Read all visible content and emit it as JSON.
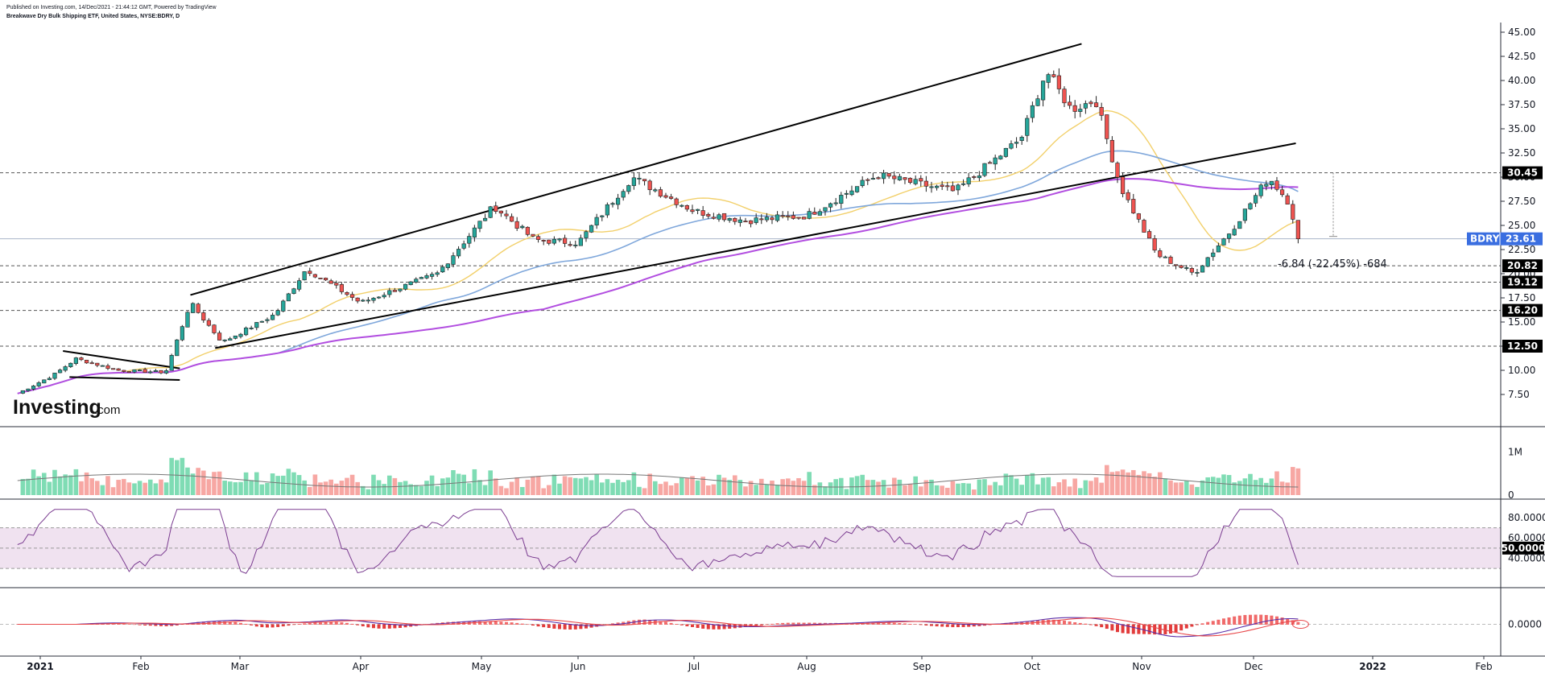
{
  "header": {
    "published": "Published on Investing.com, 14/Dec/2021 - 21:44:12 GMT, Powered by TradingView",
    "title": "Breakwave Dry Bulk Shipping ETF, United States, NYSE:BDRY, D"
  },
  "logo": {
    "main": "Investing",
    "suffix": ".com"
  },
  "colors": {
    "up": "#26a69a",
    "down": "#ef5350",
    "vol_up": "#7fdcb4",
    "vol_down": "#f7a7a3",
    "ma_fast": "#f2d06b",
    "ma_mid": "#7fa7db",
    "ma_slow": "#b24ee0",
    "rsi": "#7b3d91",
    "macd": "#5b2fa8",
    "signal": "#e8484a",
    "tag_bg": "#000000",
    "price_tag_bg": "#3a6ee0"
  },
  "chart_data": {
    "type": "candlestick",
    "symbol": "BDRY",
    "x_labels": [
      "2021",
      "Feb",
      "Mar",
      "Apr",
      "May",
      "Jun",
      "Jul",
      "Aug",
      "Sep",
      "Oct",
      "Nov",
      "Dec",
      "2022",
      "Feb"
    ],
    "x_label_bold": [
      "2021",
      "2022"
    ],
    "price_axis": {
      "ticks": [
        "45.00",
        "42.50",
        "40.00",
        "37.50",
        "35.00",
        "32.50",
        "30.00",
        "27.50",
        "25.00",
        "22.50",
        "20.00",
        "17.50",
        "15.00",
        "12.50",
        "10.00",
        "7.50"
      ],
      "ylim": [
        5.0,
        46.0
      ]
    },
    "levels": [
      "30.45",
      "20.82",
      "19.12",
      "16.20",
      "12.50"
    ],
    "last_price": {
      "label": "BDRY",
      "value": "23.61"
    },
    "change": "-6.84 (-22.45%) -684",
    "volume_axis": {
      "ticks": [
        "1M",
        "0"
      ],
      "max": 1500000
    },
    "rsi_axis": {
      "ticks": [
        "80.0000",
        "60.0000",
        "40.0000"
      ],
      "current": "50.0000",
      "band": [
        30,
        70
      ],
      "ylim": [
        15,
        95
      ]
    },
    "macd_axis": {
      "ticks": [
        "0.0000"
      ]
    },
    "trendlines": [
      {
        "from": [
          "2021-01-08",
          12.0
        ],
        "to": [
          "2021-02-12",
          10.2
        ]
      },
      {
        "from": [
          "2021-01-10",
          9.3
        ],
        "to": [
          "2021-02-12",
          9.0
        ]
      },
      {
        "from": [
          "2021-02-15",
          17.8
        ],
        "to": [
          "2021-10-15",
          43.8
        ]
      },
      {
        "from": [
          "2021-02-22",
          12.3
        ],
        "to": [
          "2021-12-12",
          33.5
        ]
      }
    ],
    "price_months": [
      [
        "2020-12-25",
        7.6
      ],
      [
        "2021-01-05",
        9.5
      ],
      [
        "2021-01-12",
        11.2
      ],
      [
        "2021-01-25",
        10.0
      ],
      [
        "2021-02-08",
        9.8
      ],
      [
        "2021-02-15",
        17.0
      ],
      [
        "2021-02-24",
        12.9
      ],
      [
        "2021-03-10",
        15.8
      ],
      [
        "2021-03-18",
        20.5
      ],
      [
        "2021-04-01",
        17.0
      ],
      [
        "2021-04-20",
        20.0
      ],
      [
        "2021-05-05",
        27.0
      ],
      [
        "2021-05-18",
        23.5
      ],
      [
        "2021-06-01",
        23.2
      ],
      [
        "2021-06-15",
        30.0
      ],
      [
        "2021-07-01",
        26.5
      ],
      [
        "2021-07-15",
        25.5
      ],
      [
        "2021-08-01",
        26.0
      ],
      [
        "2021-08-20",
        30.2
      ],
      [
        "2021-09-10",
        28.5
      ],
      [
        "2021-09-28",
        34.0
      ],
      [
        "2021-10-05",
        41.0
      ],
      [
        "2021-10-12",
        37.0
      ],
      [
        "2021-10-19",
        38.0
      ],
      [
        "2021-10-26",
        29.0
      ],
      [
        "2021-11-05",
        22.0
      ],
      [
        "2021-11-15",
        20.0
      ],
      [
        "2021-11-25",
        24.5
      ],
      [
        "2021-12-05",
        30.0
      ],
      [
        "2021-12-10",
        27.5
      ],
      [
        "2021-12-13",
        23.61
      ]
    ]
  }
}
